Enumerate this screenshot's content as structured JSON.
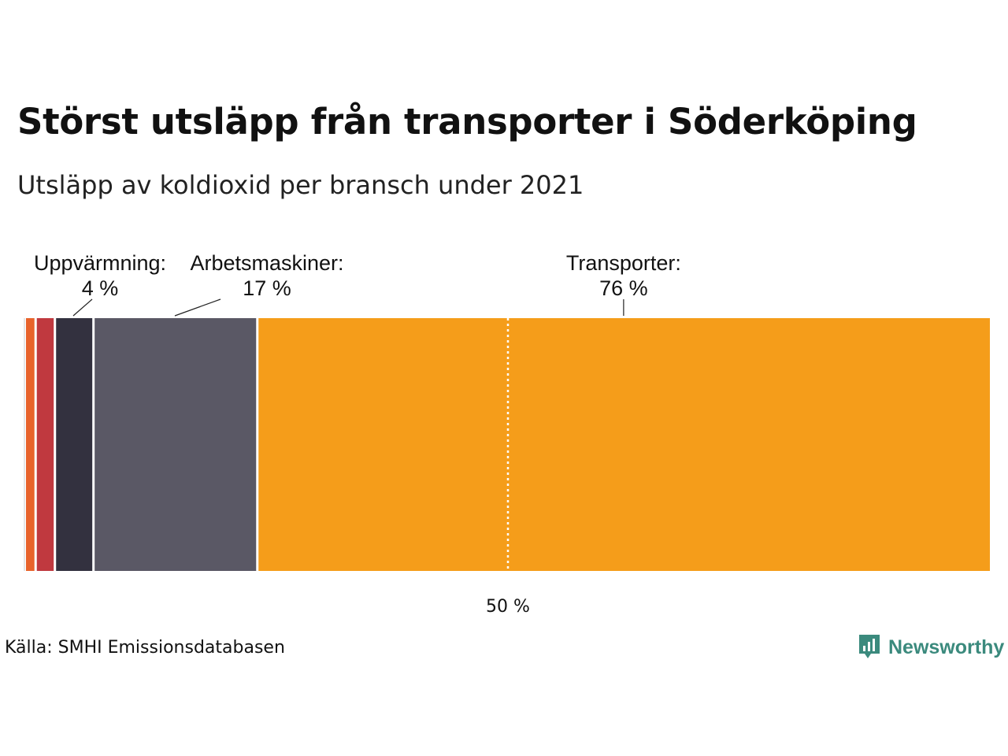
{
  "header": {
    "title": "Störst utsläpp från transporter i Söderköping",
    "subtitle": "Utsläpp av koldioxid per bransch under 2021"
  },
  "footer": {
    "source": "Källa: SMHI Emissionsdatabasen",
    "brand": "Newsworthy",
    "brand_color": "#3b8a7d"
  },
  "chart_data": {
    "type": "bar",
    "orientation": "horizontal-stacked",
    "unit": "%",
    "xlim": [
      0,
      100
    ],
    "reference_line": {
      "value": 50,
      "label": "50 %"
    },
    "segments": [
      {
        "name": "",
        "value": 1,
        "color": "#e8632b",
        "label": null
      },
      {
        "name": "",
        "value": 2,
        "color": "#c0393f",
        "label": null
      },
      {
        "name": "Uppvärmning",
        "value": 4,
        "color": "#33313f",
        "label": [
          "Uppvärmning:",
          "4 %"
        ]
      },
      {
        "name": "Arbetsmaskiner",
        "value": 17,
        "color": "#5a5865",
        "label": [
          "Arbetsmaskiner:",
          "17 %"
        ]
      },
      {
        "name": "Transporter",
        "value": 76,
        "color": "#f59d1a",
        "label": [
          "Transporter:",
          "76 %"
        ]
      }
    ]
  }
}
